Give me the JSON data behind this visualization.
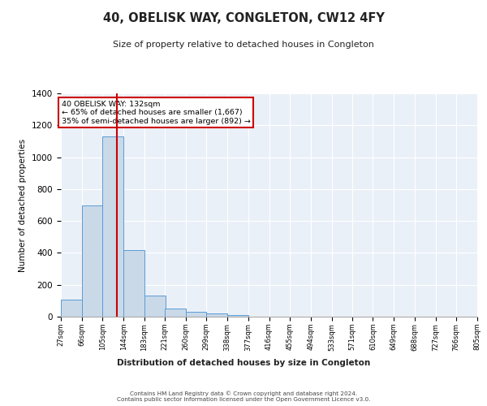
{
  "title": "40, OBELISK WAY, CONGLETON, CW12 4FY",
  "subtitle": "Size of property relative to detached houses in Congleton",
  "xlabel": "Distribution of detached houses by size in Congleton",
  "ylabel": "Number of detached properties",
  "bar_color": "#c9d9e8",
  "bar_edge_color": "#5b9bd5",
  "background_color": "#eaf0f8",
  "grid_color": "#ffffff",
  "red_line_x": 132,
  "annotation_text": "40 OBELISK WAY: 132sqm\n← 65% of detached houses are smaller (1,667)\n35% of semi-detached houses are larger (892) →",
  "annotation_box_color": "#ffffff",
  "annotation_box_edge": "#cc0000",
  "bin_edges": [
    27,
    66,
    105,
    144,
    183,
    221,
    260,
    299,
    338,
    377,
    416,
    455,
    494,
    533,
    571,
    610,
    649,
    688,
    727,
    766,
    805
  ],
  "bin_counts": [
    108,
    700,
    1130,
    420,
    130,
    52,
    30,
    18,
    12,
    0,
    0,
    0,
    0,
    0,
    0,
    0,
    0,
    0,
    0,
    0
  ],
  "ylim": [
    0,
    1400
  ],
  "yticks": [
    0,
    200,
    400,
    600,
    800,
    1000,
    1200,
    1400
  ],
  "footer_text": "Contains HM Land Registry data © Crown copyright and database right 2024.\nContains public sector information licensed under the Open Government Licence v3.0.",
  "tick_labels": [
    "27sqm",
    "66sqm",
    "105sqm",
    "144sqm",
    "183sqm",
    "221sqm",
    "260sqm",
    "299sqm",
    "338sqm",
    "377sqm",
    "416sqm",
    "455sqm",
    "494sqm",
    "533sqm",
    "571sqm",
    "610sqm",
    "649sqm",
    "688sqm",
    "727sqm",
    "766sqm",
    "805sqm"
  ]
}
